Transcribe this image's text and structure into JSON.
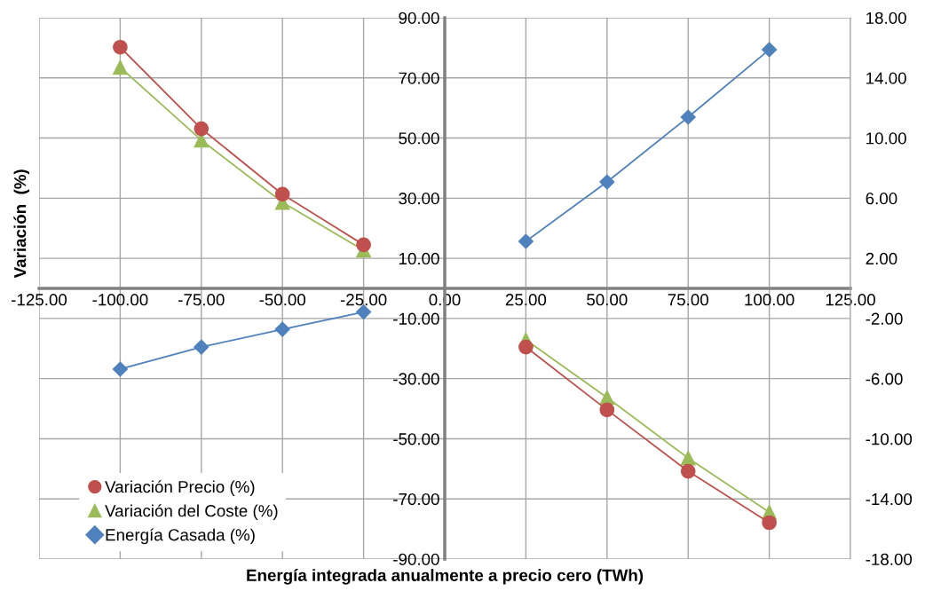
{
  "chart_data": {
    "type": "line",
    "xlabel": "Energía integrada anualmente a precio cero (TWh)",
    "ylabel": "Variación  (%)",
    "x": [
      -100,
      -75,
      -50,
      -25,
      0,
      25,
      50,
      75,
      100
    ],
    "series": [
      {
        "name": "Variación Precio (%)",
        "color": "#c0504d",
        "marker": "circle",
        "values": [
          80.2,
          53.1,
          31.3,
          14.5,
          null,
          -19.5,
          -40.4,
          -60.8,
          -77.9
        ]
      },
      {
        "name": "Variación del Coste (%)",
        "color": "#9bbb59",
        "marker": "triangle",
        "values": [
          73.5,
          49.3,
          28.6,
          12.7,
          null,
          -17.1,
          -36.3,
          -56.4,
          -74.4
        ]
      },
      {
        "name": "Energía Casada (%)",
        "color": "#4f81bd",
        "marker": "diamond",
        "axis": "y2",
        "values": [
          -5.37,
          -3.9,
          -2.72,
          -1.57,
          null,
          3.13,
          7.08,
          11.39,
          15.88
        ]
      }
    ],
    "xlim": [
      -125,
      125
    ],
    "xticks": [
      {
        "value": -125,
        "label": "-125.00"
      },
      {
        "value": -100,
        "label": "-100.00"
      },
      {
        "value": -75,
        "label": "-75.00"
      },
      {
        "value": -50,
        "label": "-50.00"
      },
      {
        "value": -25,
        "label": "-25.00"
      },
      {
        "value": 0,
        "label": "0.00"
      },
      {
        "value": 25,
        "label": "25.00"
      },
      {
        "value": 50,
        "label": "50.00"
      },
      {
        "value": 75,
        "label": "75.00"
      },
      {
        "value": 100,
        "label": "100.00"
      },
      {
        "value": 125,
        "label": "125.00"
      }
    ],
    "ylim": [
      -90,
      90
    ],
    "yticks": [
      {
        "value": -90,
        "label": "-90.00"
      },
      {
        "value": -70,
        "label": "-70.00"
      },
      {
        "value": -50,
        "label": "-50.00"
      },
      {
        "value": -30,
        "label": "-30.00"
      },
      {
        "value": -10,
        "label": "-10.00"
      },
      {
        "value": 10,
        "label": "10.00"
      },
      {
        "value": 30,
        "label": "30.00"
      },
      {
        "value": 50,
        "label": "50.00"
      },
      {
        "value": 70,
        "label": "70.00"
      },
      {
        "value": 90,
        "label": "90.00"
      }
    ],
    "y2lim": [
      -18,
      18
    ],
    "y2ticks": [
      {
        "value": -18,
        "label": "-18.00"
      },
      {
        "value": -14,
        "label": "-14.00"
      },
      {
        "value": -10,
        "label": "-10.00"
      },
      {
        "value": -6,
        "label": "-6.00"
      },
      {
        "value": -2,
        "label": "-2.00"
      },
      {
        "value": 2,
        "label": "2.00"
      },
      {
        "value": 6,
        "label": "6.00"
      },
      {
        "value": 10,
        "label": "10.00"
      },
      {
        "value": 14,
        "label": "14.00"
      },
      {
        "value": 18,
        "label": "18.00"
      }
    ],
    "grid": true,
    "legend": "bottom left",
    "line_style": "solid"
  }
}
